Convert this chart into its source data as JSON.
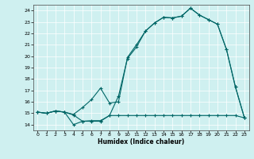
{
  "xlabel": "Humidex (Indice chaleur)",
  "background_color": "#cff0f0",
  "grid_color": "#ffffff",
  "line_color": "#006666",
  "xlim": [
    -0.5,
    23.5
  ],
  "ylim": [
    13.5,
    24.5
  ],
  "xticks": [
    0,
    1,
    2,
    3,
    4,
    5,
    6,
    7,
    8,
    9,
    10,
    11,
    12,
    13,
    14,
    15,
    16,
    17,
    18,
    19,
    20,
    21,
    22,
    23
  ],
  "yticks": [
    14,
    15,
    16,
    17,
    18,
    19,
    20,
    21,
    22,
    23,
    24
  ],
  "line1_x": [
    0,
    1,
    2,
    3,
    4,
    5,
    6,
    7,
    8,
    9,
    10,
    11,
    12,
    13,
    14,
    15,
    16,
    17,
    18,
    19,
    20,
    21,
    22,
    23
  ],
  "line1_y": [
    15.1,
    15.0,
    15.2,
    15.1,
    14.0,
    14.3,
    14.35,
    14.35,
    14.8,
    16.5,
    19.8,
    20.8,
    22.2,
    22.9,
    23.4,
    23.35,
    23.5,
    24.2,
    23.6,
    23.2,
    22.8,
    20.6,
    17.3,
    14.6
  ],
  "line2_x": [
    0,
    1,
    2,
    3,
    4,
    5,
    6,
    7,
    8,
    9,
    10,
    11,
    12,
    13,
    14,
    15,
    16,
    17,
    18,
    19,
    20,
    21,
    22,
    23
  ],
  "line2_y": [
    15.1,
    15.0,
    15.2,
    15.1,
    14.9,
    15.5,
    16.2,
    17.2,
    15.9,
    16.0,
    19.9,
    21.0,
    22.2,
    22.9,
    23.4,
    23.35,
    23.5,
    24.2,
    23.6,
    23.2,
    22.8,
    20.6,
    17.3,
    14.6
  ],
  "line3_x": [
    0,
    1,
    2,
    3,
    4,
    5,
    6,
    7,
    8,
    9,
    10,
    11,
    12,
    13,
    14,
    15,
    16,
    17,
    18,
    19,
    20,
    21,
    22,
    23
  ],
  "line3_y": [
    15.1,
    15.0,
    15.2,
    15.1,
    14.85,
    14.3,
    14.3,
    14.3,
    14.8,
    14.8,
    14.8,
    14.8,
    14.8,
    14.8,
    14.8,
    14.8,
    14.8,
    14.8,
    14.8,
    14.8,
    14.8,
    14.8,
    14.8,
    14.6
  ],
  "figwidth": 3.2,
  "figheight": 2.0,
  "dpi": 100
}
